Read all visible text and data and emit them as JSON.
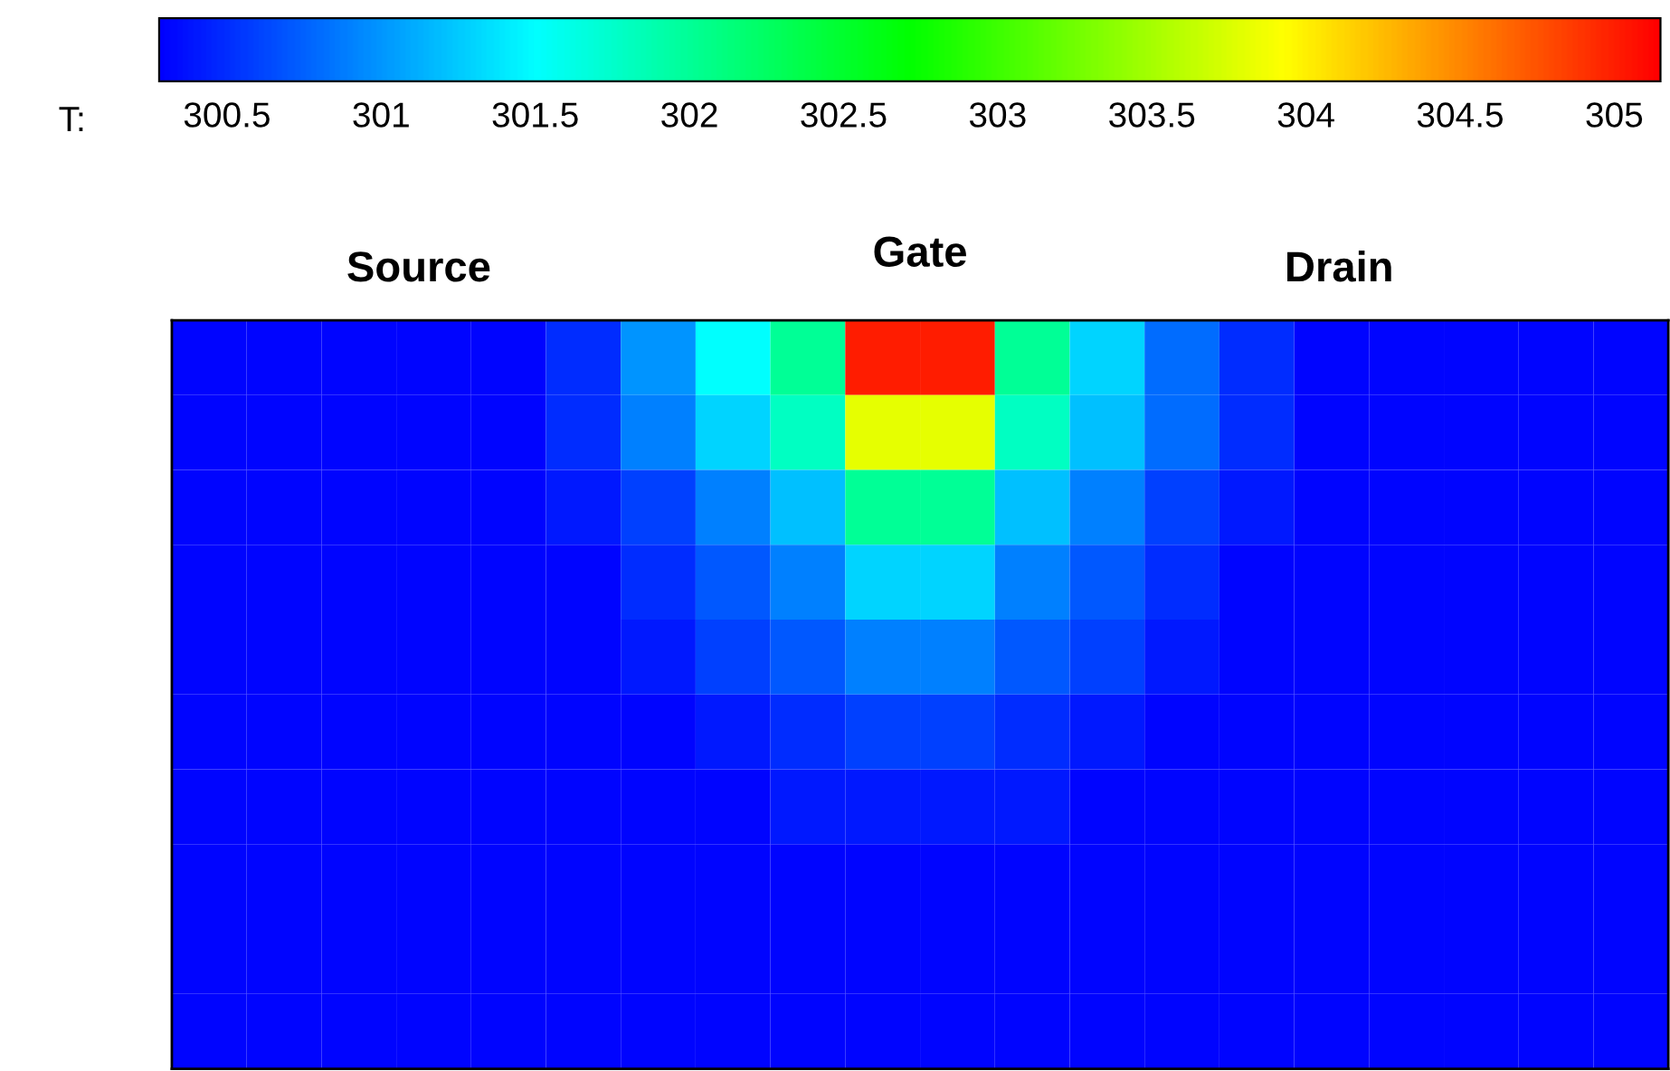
{
  "chart_data": {
    "type": "heatmap",
    "clabel": "T:",
    "annotations": [
      "Source",
      "Gate",
      "Drain"
    ],
    "categories": [
      null,
      null,
      null,
      null,
      null,
      null,
      null,
      null,
      null,
      null,
      null,
      null,
      null,
      null,
      null,
      null,
      null,
      null,
      null,
      null
    ],
    "y_categories": [
      null,
      null,
      null,
      null,
      null,
      null,
      null,
      null,
      null,
      null
    ],
    "cells": [
      [
        300.3,
        300.3,
        300.3,
        300.3,
        300.3,
        300.5,
        301.0,
        301.5,
        302.0,
        305.0,
        305.0,
        302.0,
        301.3,
        300.8,
        300.5,
        300.3,
        300.3,
        300.3,
        300.3,
        300.3
      ],
      [
        300.3,
        300.3,
        300.3,
        300.3,
        300.3,
        300.5,
        300.9,
        301.3,
        301.8,
        303.8,
        303.8,
        301.8,
        301.2,
        300.8,
        300.5,
        300.3,
        300.3,
        300.3,
        300.3,
        300.3
      ],
      [
        300.3,
        300.3,
        300.3,
        300.3,
        300.3,
        300.4,
        300.6,
        300.9,
        301.2,
        302.0,
        302.0,
        301.2,
        300.9,
        300.6,
        300.4,
        300.3,
        300.3,
        300.3,
        300.3,
        300.3
      ],
      [
        300.3,
        300.3,
        300.3,
        300.3,
        300.3,
        300.3,
        300.5,
        300.7,
        300.9,
        301.3,
        301.3,
        300.9,
        300.7,
        300.5,
        300.3,
        300.3,
        300.3,
        300.3,
        300.3,
        300.3
      ],
      [
        300.3,
        300.3,
        300.3,
        300.3,
        300.3,
        300.3,
        300.4,
        300.6,
        300.7,
        300.9,
        300.9,
        300.7,
        300.6,
        300.4,
        300.3,
        300.3,
        300.3,
        300.3,
        300.3,
        300.3
      ],
      [
        300.3,
        300.3,
        300.3,
        300.3,
        300.3,
        300.3,
        300.3,
        300.4,
        300.5,
        300.6,
        300.6,
        300.5,
        300.4,
        300.3,
        300.3,
        300.3,
        300.3,
        300.3,
        300.3,
        300.3
      ],
      [
        300.3,
        300.3,
        300.3,
        300.3,
        300.3,
        300.3,
        300.3,
        300.3,
        300.4,
        300.4,
        300.4,
        300.4,
        300.3,
        300.3,
        300.3,
        300.3,
        300.3,
        300.3,
        300.3,
        300.3
      ],
      [
        300.3,
        300.3,
        300.3,
        300.3,
        300.3,
        300.3,
        300.3,
        300.3,
        300.3,
        300.3,
        300.3,
        300.3,
        300.3,
        300.3,
        300.3,
        300.3,
        300.3,
        300.3,
        300.3,
        300.3
      ],
      [
        300.3,
        300.3,
        300.3,
        300.3,
        300.3,
        300.3,
        300.3,
        300.3,
        300.3,
        300.3,
        300.3,
        300.3,
        300.3,
        300.3,
        300.3,
        300.3,
        300.3,
        300.3,
        300.3,
        300.3
      ],
      [
        300.3,
        300.3,
        300.3,
        300.3,
        300.3,
        300.3,
        300.3,
        300.3,
        300.3,
        300.3,
        300.3,
        300.3,
        300.3,
        300.3,
        300.3,
        300.3,
        300.3,
        300.3,
        300.3,
        300.3
      ]
    ],
    "clim": [
      300.28,
      305.15
    ],
    "cticks": [
      300.5,
      301,
      301.5,
      302,
      302.5,
      303,
      303.5,
      304,
      304.5,
      305
    ]
  }
}
